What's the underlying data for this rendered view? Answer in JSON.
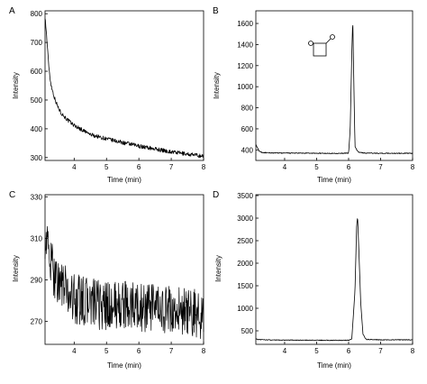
{
  "caption": "",
  "chart_data": [
    {
      "panel": "A",
      "type": "line",
      "xlabel": "Time (min)",
      "ylabel": "Intensity",
      "xlim": [
        3.1,
        8.0
      ],
      "ylim": [
        290,
        810
      ],
      "xticks": [
        4,
        5,
        6,
        7,
        8
      ],
      "yticks": [
        300,
        400,
        500,
        600,
        700,
        800
      ],
      "grid": false,
      "noise": 7,
      "series": [
        {
          "x": [
            3.1,
            3.15,
            3.2,
            3.25,
            3.3,
            3.4,
            3.5,
            3.6,
            3.8,
            4.0,
            4.5,
            5.0,
            5.5,
            6.0,
            6.5,
            7.0,
            7.5,
            8.0
          ],
          "y": [
            790,
            720,
            640,
            580,
            545,
            505,
            475,
            455,
            430,
            412,
            380,
            365,
            352,
            340,
            330,
            320,
            312,
            305
          ]
        }
      ]
    },
    {
      "panel": "B",
      "type": "line",
      "xlabel": "Time (min)",
      "ylabel": "Intensity",
      "xlim": [
        3.1,
        8.0
      ],
      "ylim": [
        300,
        1720
      ],
      "xticks": [
        4,
        5,
        6,
        7,
        8
      ],
      "yticks": [
        400,
        600,
        800,
        1000,
        1200,
        1400,
        1600
      ],
      "grid": false,
      "noise": 4,
      "inset": "beta-propiolactone structure",
      "series": [
        {
          "x": [
            3.1,
            3.15,
            3.2,
            3.3,
            3.5,
            4.0,
            5.0,
            5.8,
            6.0,
            6.05,
            6.1,
            6.13,
            6.16,
            6.2,
            6.3,
            6.5,
            7.0,
            8.0
          ],
          "y": [
            450,
            420,
            390,
            375,
            372,
            370,
            368,
            367,
            370,
            600,
            1320,
            1640,
            1100,
            430,
            380,
            370,
            368,
            368
          ]
        }
      ]
    },
    {
      "panel": "C",
      "type": "line",
      "xlabel": "Time (min)",
      "ylabel": "Intensity",
      "xlim": [
        3.1,
        8.0
      ],
      "ylim": [
        259,
        331
      ],
      "xticks": [
        4,
        5,
        6,
        7,
        8
      ],
      "yticks": [
        270,
        290,
        310,
        330
      ],
      "grid": false,
      "noise": 12,
      "series": [
        {
          "x": [
            3.1,
            3.2,
            3.3,
            3.5,
            3.8,
            4.0,
            4.5,
            5.0,
            5.5,
            6.0,
            6.5,
            7.0,
            7.5,
            8.0
          ],
          "y": [
            312,
            304,
            296,
            290,
            284,
            281,
            279,
            277,
            278,
            277,
            276,
            275,
            274,
            273
          ]
        }
      ]
    },
    {
      "panel": "D",
      "type": "line",
      "xlabel": "Time (min)",
      "ylabel": "Intensity",
      "xlim": [
        3.1,
        8.0
      ],
      "ylim": [
        200,
        3520
      ],
      "xticks": [
        4,
        5,
        6,
        7,
        8
      ],
      "yticks": [
        500,
        1000,
        1500,
        2000,
        2500,
        3000,
        3500
      ],
      "grid": false,
      "noise": 8,
      "series": [
        {
          "x": [
            3.1,
            3.15,
            3.2,
            3.4,
            4.0,
            5.0,
            6.0,
            6.1,
            6.2,
            6.25,
            6.28,
            6.32,
            6.38,
            6.45,
            6.55,
            7.0,
            8.0
          ],
          "y": [
            330,
            310,
            305,
            300,
            295,
            290,
            290,
            320,
            1400,
            2800,
            3050,
            2300,
            1100,
            420,
            310,
            300,
            300
          ]
        }
      ]
    }
  ]
}
